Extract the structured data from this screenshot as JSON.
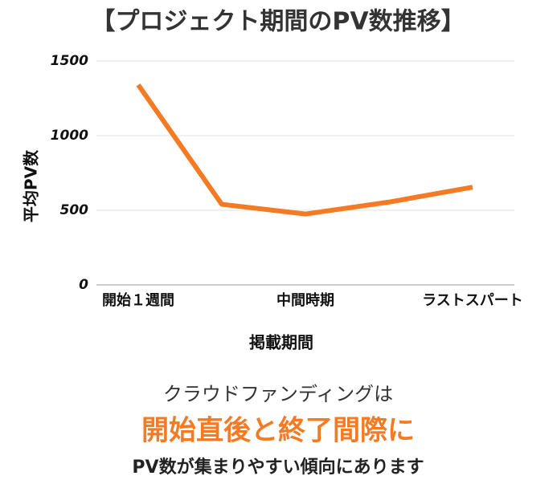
{
  "chart_data": {
    "type": "line",
    "title": "【プロジェクト期間のPV数推移】",
    "y_label": "平均PV数",
    "x_label": "掲載期間",
    "categories": [
      "開始１週間",
      null,
      "中間時期",
      null,
      "ラストスパート"
    ],
    "series": [
      {
        "name": "平均PV数",
        "color": "#f57a24",
        "values": [
          1340,
          540,
          475,
          555,
          655
        ]
      }
    ],
    "ylim": [
      0,
      1500
    ],
    "yticks": [
      0,
      500,
      1000,
      1500
    ],
    "grid": true,
    "annotations": [
      "クラウドファンディングは",
      "開始直後と終了間際に",
      "PV数が集まりやすい傾向にあります"
    ]
  }
}
